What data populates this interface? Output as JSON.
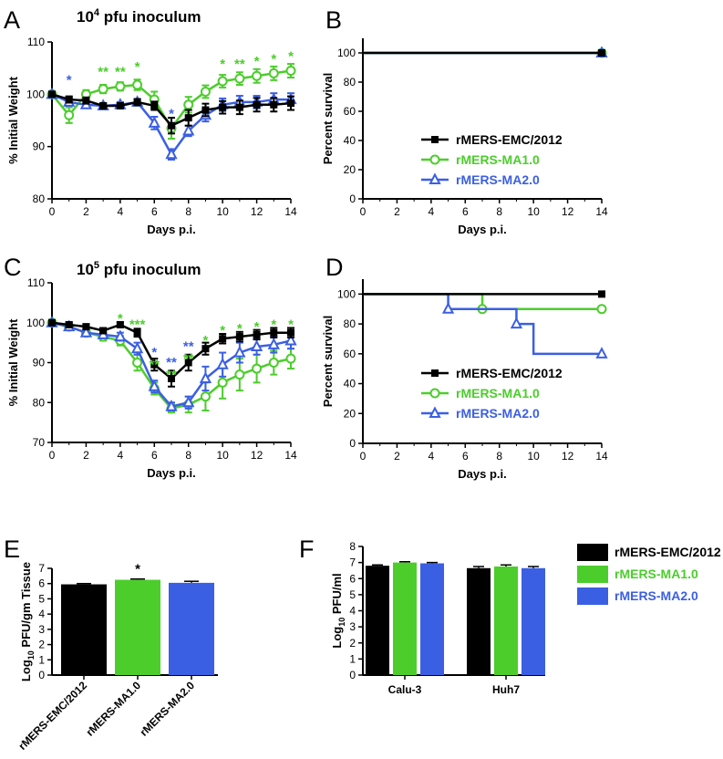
{
  "colors": {
    "emc": "#000000",
    "ma1": "#4ccd2c",
    "ma2": "#3b5fe3"
  },
  "legend": {
    "emc": "rMERS-EMC/2012",
    "ma1": "rMERS-MA1.0",
    "ma2": "rMERS-MA2.0"
  },
  "panels": {
    "A": {
      "letter": "A",
      "title_main": "10",
      "title_exp": "4",
      "title_rest": " pfu inoculum"
    },
    "B": {
      "letter": "B"
    },
    "C": {
      "letter": "C",
      "title_main": "10",
      "title_exp": "5",
      "title_rest": " pfu inoculum"
    },
    "D": {
      "letter": "D"
    },
    "E": {
      "letter": "E"
    },
    "F": {
      "letter": "F"
    }
  },
  "chart_data": [
    {
      "panel": "A",
      "type": "line",
      "xlabel": "Days p.i.",
      "ylabel": "% Initial Weight",
      "xlim": [
        0,
        14
      ],
      "ylim": [
        80,
        110
      ],
      "xticks": [
        0,
        2,
        4,
        6,
        8,
        10,
        12,
        14
      ],
      "yticks": [
        80,
        90,
        100,
        110
      ],
      "x": [
        0,
        1,
        2,
        3,
        4,
        5,
        6,
        7,
        8,
        9,
        10,
        11,
        12,
        13,
        14
      ],
      "series": [
        {
          "key": "emc",
          "name": "rMERS-EMC/2012",
          "marker": "square",
          "values": [
            100,
            99,
            98.8,
            97.8,
            97.8,
            98.5,
            97.8,
            94,
            95.5,
            97,
            97.5,
            97.5,
            98,
            98,
            98.3
          ],
          "err": [
            0.4,
            0.6,
            0.6,
            0.5,
            0.5,
            0.6,
            0.8,
            1.5,
            1.5,
            1.2,
            1.2,
            1.3,
            1.3,
            1.3,
            1.3
          ]
        },
        {
          "key": "ma1",
          "name": "rMERS-MA1.0",
          "marker": "circle",
          "values": [
            100,
            96,
            100,
            101,
            101.5,
            101.8,
            99,
            93.5,
            98,
            100.5,
            102.5,
            103,
            103.5,
            104,
            104.5
          ],
          "err": [
            0.4,
            1.5,
            0.8,
            0.8,
            0.8,
            1.0,
            1.5,
            2.0,
            1.5,
            1.2,
            1.2,
            1.2,
            1.3,
            1.3,
            1.3
          ]
        },
        {
          "key": "ma2",
          "name": "rMERS-MA2.0",
          "marker": "triangle",
          "values": [
            100,
            98.5,
            98,
            97.8,
            98,
            98.5,
            94.5,
            88.5,
            93,
            96,
            98,
            98.5,
            98.5,
            99,
            99
          ],
          "err": [
            0.4,
            0.7,
            0.6,
            0.5,
            0.5,
            0.6,
            1.2,
            1.0,
            1.0,
            1.2,
            1.2,
            1.2,
            1.2,
            1.2,
            1.2
          ]
        }
      ],
      "annotations": [
        {
          "x": 1,
          "text": "*",
          "color": "ma2",
          "level": 103.5
        },
        {
          "x": 3,
          "text": "**",
          "color": "ma1",
          "level": 105
        },
        {
          "x": 4,
          "text": "**",
          "color": "ma1",
          "level": 105
        },
        {
          "x": 5,
          "text": "*",
          "color": "ma1",
          "level": 106
        },
        {
          "x": 7,
          "text": "*",
          "color": "ma2",
          "level": 97
        },
        {
          "x": 10,
          "text": "*",
          "color": "ma1",
          "level": 106.5
        },
        {
          "x": 11,
          "text": "**",
          "color": "ma1",
          "level": 106.5
        },
        {
          "x": 12,
          "text": "*",
          "color": "ma1",
          "level": 107
        },
        {
          "x": 13,
          "text": "*",
          "color": "ma1",
          "level": 107.5
        },
        {
          "x": 14,
          "text": "*",
          "color": "ma1",
          "level": 108
        }
      ]
    },
    {
      "panel": "B",
      "type": "line",
      "xlabel": "Days p.i.",
      "ylabel": "Percent survival",
      "xlim": [
        0,
        14
      ],
      "ylim": [
        0,
        110
      ],
      "xticks": [
        0,
        2,
        4,
        6,
        8,
        10,
        12,
        14
      ],
      "yticks": [
        0,
        20,
        40,
        60,
        80,
        100
      ],
      "series": [
        {
          "key": "emc",
          "name": "rMERS-EMC/2012",
          "steps": [
            [
              0,
              100
            ],
            [
              14,
              100
            ]
          ],
          "markers": [
            [
              14,
              100
            ]
          ]
        },
        {
          "key": "ma1",
          "name": "rMERS-MA1.0",
          "steps": [
            [
              0,
              100
            ],
            [
              14,
              100
            ]
          ],
          "markers": [
            [
              14,
              100
            ]
          ]
        },
        {
          "key": "ma2",
          "name": "rMERS-MA2.0",
          "steps": [
            [
              0,
              100
            ],
            [
              14,
              100
            ]
          ],
          "markers": [
            [
              14,
              100
            ]
          ]
        }
      ]
    },
    {
      "panel": "C",
      "type": "line",
      "xlabel": "Days p.i.",
      "ylabel": "% Initial Weight",
      "xlim": [
        0,
        14
      ],
      "ylim": [
        70,
        110
      ],
      "xticks": [
        0,
        2,
        4,
        6,
        8,
        10,
        12,
        14
      ],
      "yticks": [
        70,
        80,
        90,
        100,
        110
      ],
      "x": [
        0,
        1,
        2,
        3,
        4,
        5,
        6,
        7,
        8,
        9,
        10,
        11,
        12,
        13,
        14
      ],
      "series": [
        {
          "key": "emc",
          "name": "rMERS-EMC/2012",
          "marker": "square",
          "values": [
            100,
            99.5,
            99,
            98,
            99.5,
            97.5,
            89.5,
            86,
            90,
            93.5,
            96,
            96.5,
            97,
            97.5,
            97.5
          ],
          "err": [
            0.5,
            0.6,
            0.6,
            0.6,
            0.6,
            1.0,
            1.5,
            2.0,
            2.0,
            1.5,
            1.2,
            1.2,
            1.2,
            1.2,
            1.2
          ]
        },
        {
          "key": "ma1",
          "name": "rMERS-MA1.0",
          "marker": "circle",
          "values": [
            100,
            99,
            97.5,
            96.5,
            95.5,
            90,
            83.5,
            78.5,
            79.5,
            81.5,
            85,
            87,
            88.5,
            90,
            91
          ],
          "err": [
            0.5,
            0.8,
            0.8,
            1.0,
            1.2,
            2.0,
            1.5,
            1.0,
            2.0,
            3.5,
            4.0,
            4.0,
            3.5,
            3.0,
            2.5
          ]
        },
        {
          "key": "ma2",
          "name": "rMERS-MA2.0",
          "marker": "triangle",
          "values": [
            100,
            99,
            97.5,
            97,
            96.5,
            93.5,
            84,
            79,
            80,
            86,
            89.5,
            92.5,
            94,
            94.5,
            95.5
          ],
          "err": [
            0.5,
            0.8,
            0.8,
            0.8,
            1.0,
            1.5,
            1.5,
            1.0,
            1.5,
            3.0,
            3.0,
            2.5,
            2.0,
            2.0,
            2.0
          ]
        }
      ],
      "annotations": [
        {
          "x": 4,
          "text": "*",
          "color": "ma1",
          "level": 102
        },
        {
          "x": 5,
          "text": "***",
          "color": "ma1",
          "level": 100.5
        },
        {
          "x": 6,
          "text": "*",
          "color": "ma2",
          "level": 93.5
        },
        {
          "x": 6,
          "text": "**",
          "color": "ma1",
          "level": 90.5
        },
        {
          "x": 7,
          "text": "**",
          "color": "ma2",
          "level": 91
        },
        {
          "x": 7,
          "text": "**",
          "color": "ma1",
          "level": 88
        },
        {
          "x": 8,
          "text": "**",
          "color": "ma2",
          "level": 95
        },
        {
          "x": 8,
          "text": "**",
          "color": "ma1",
          "level": 92
        },
        {
          "x": 9,
          "text": "*",
          "color": "ma1",
          "level": 96.5
        },
        {
          "x": 10,
          "text": "*",
          "color": "ma1",
          "level": 99
        },
        {
          "x": 11,
          "text": "*",
          "color": "ma1",
          "level": 99.5
        },
        {
          "x": 12,
          "text": "*",
          "color": "ma1",
          "level": 100
        },
        {
          "x": 13,
          "text": "*",
          "color": "ma1",
          "level": 100.5
        },
        {
          "x": 14,
          "text": "*",
          "color": "ma1",
          "level": 100.5
        }
      ]
    },
    {
      "panel": "D",
      "type": "line",
      "xlabel": "Days p.i.",
      "ylabel": "Percent survival",
      "xlim": [
        0,
        14
      ],
      "ylim": [
        0,
        110
      ],
      "xticks": [
        0,
        2,
        4,
        6,
        8,
        10,
        12,
        14
      ],
      "yticks": [
        0,
        20,
        40,
        60,
        80,
        100
      ],
      "series": [
        {
          "key": "emc",
          "name": "rMERS-EMC/2012",
          "steps": [
            [
              0,
              100
            ],
            [
              14,
              100
            ]
          ],
          "markers": [
            [
              14,
              100
            ]
          ]
        },
        {
          "key": "ma1",
          "name": "rMERS-MA1.0",
          "steps": [
            [
              0,
              100
            ],
            [
              7,
              100
            ],
            [
              7,
              90
            ],
            [
              14,
              90
            ]
          ],
          "markers": [
            [
              7,
              90
            ],
            [
              14,
              90
            ]
          ]
        },
        {
          "key": "ma2",
          "name": "rMERS-MA2.0",
          "steps": [
            [
              0,
              100
            ],
            [
              5,
              100
            ],
            [
              5,
              90
            ],
            [
              9,
              90
            ],
            [
              9,
              80
            ],
            [
              10,
              80
            ],
            [
              10,
              60
            ],
            [
              14,
              60
            ]
          ],
          "markers": [
            [
              5,
              90
            ],
            [
              9,
              80
            ],
            [
              14,
              60
            ]
          ]
        }
      ]
    },
    {
      "panel": "E",
      "type": "bar",
      "ylabel_main": "Log",
      "ylabel_sub": "10",
      "ylabel_rest": " PFU/gm Tissue",
      "ylim": [
        0,
        7
      ],
      "yticks": [
        0,
        1,
        2,
        3,
        4,
        5,
        6,
        7
      ],
      "categories": [
        "rMERS-EMC/2012",
        "rMERS-MA1.0",
        "rMERS-MA2.0"
      ],
      "keys": [
        "emc",
        "ma1",
        "ma2"
      ],
      "values": [
        5.95,
        6.25,
        6.05
      ],
      "err": [
        0.05,
        0.05,
        0.1
      ],
      "annotations": [
        {
          "index": 1,
          "text": "*"
        }
      ]
    },
    {
      "panel": "F",
      "type": "bar",
      "ylabel_main": "Log",
      "ylabel_sub": "10",
      "ylabel_rest": " PFU/ml",
      "ylim": [
        0,
        8
      ],
      "yticks": [
        0,
        1,
        2,
        3,
        4,
        5,
        6,
        7,
        8
      ],
      "categories": [
        "Calu-3",
        "Huh7"
      ],
      "series": [
        {
          "key": "emc",
          "name": "rMERS-EMC/2012",
          "values": [
            6.8,
            6.65
          ],
          "err": [
            0.05,
            0.1
          ]
        },
        {
          "key": "ma1",
          "name": "rMERS-MA1.0",
          "values": [
            7.0,
            6.75
          ],
          "err": [
            0.05,
            0.1
          ]
        },
        {
          "key": "ma2",
          "name": "rMERS-MA2.0",
          "values": [
            6.95,
            6.65
          ],
          "err": [
            0.05,
            0.1
          ]
        }
      ]
    }
  ]
}
